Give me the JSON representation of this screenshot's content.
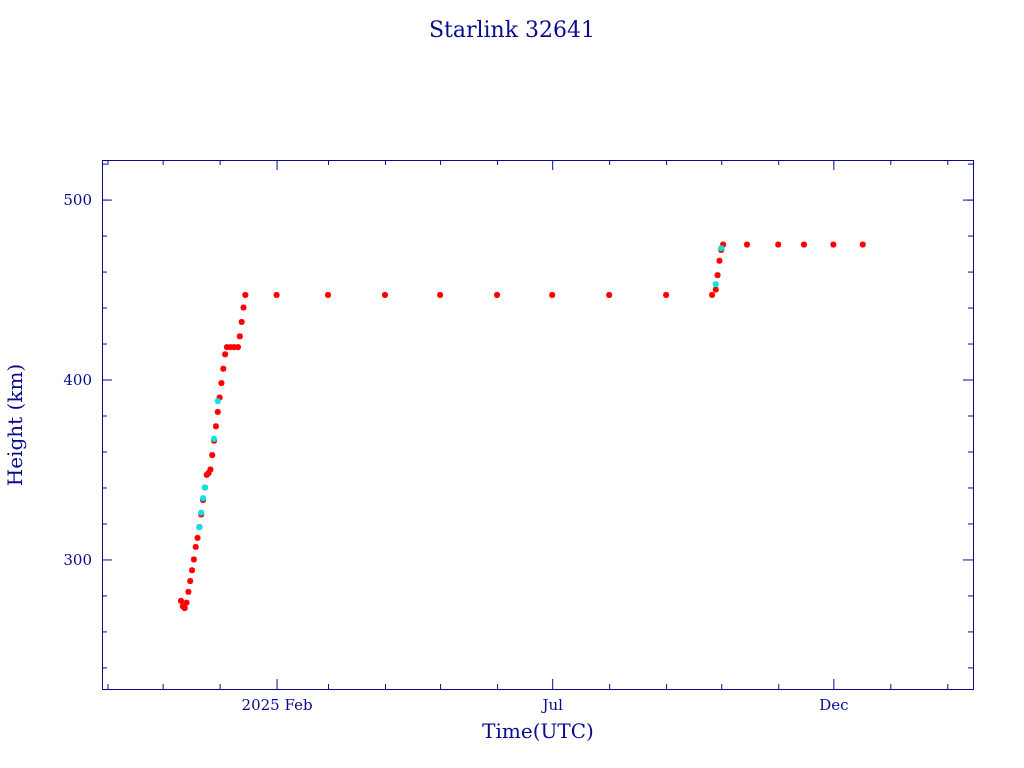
{
  "chart_data": {
    "type": "scatter",
    "title": "Starlink 32641",
    "xlabel": "Time(UTC)",
    "ylabel": "Height (km)",
    "x_unit": "date",
    "xlim": [
      "2024-10-29",
      "2026-02-15"
    ],
    "ylim": [
      228,
      522
    ],
    "x_major_ticks": [
      {
        "date": "2025-02-01",
        "label": "2025 Feb"
      },
      {
        "date": "2025-07-01",
        "label": "Jul"
      },
      {
        "date": "2025-12-01",
        "label": "Dec"
      }
    ],
    "x_minor_ticks": [
      "2024-11-01",
      "2024-12-01",
      "2025-01-01",
      "2025-03-01",
      "2025-04-01",
      "2025-05-01",
      "2025-06-01",
      "2025-08-01",
      "2025-09-01",
      "2025-10-01",
      "2025-11-01",
      "2026-01-01",
      "2026-02-01"
    ],
    "y_major_ticks": [
      300,
      400,
      500
    ],
    "y_minor_ticks": [
      240,
      260,
      280,
      320,
      340,
      360,
      380,
      420,
      440,
      460,
      480,
      500,
      520
    ],
    "grid": false,
    "series": [
      {
        "color": "#ff0000",
        "points": [
          [
            "2024-12-11",
            277
          ],
          [
            "2024-12-12",
            274
          ],
          [
            "2024-12-13",
            273
          ],
          [
            "2024-12-14",
            276
          ],
          [
            "2024-12-15",
            282
          ],
          [
            "2024-12-16",
            288
          ],
          [
            "2024-12-17",
            294
          ],
          [
            "2024-12-18",
            300
          ],
          [
            "2024-12-19",
            307
          ],
          [
            "2024-12-20",
            312
          ],
          [
            "2024-12-21",
            318
          ],
          [
            "2024-12-22",
            325
          ],
          [
            "2024-12-23",
            333
          ],
          [
            "2024-12-24",
            340
          ],
          [
            "2024-12-25",
            347
          ],
          [
            "2024-12-26",
            348
          ],
          [
            "2024-12-27",
            350
          ],
          [
            "2024-12-28",
            358
          ],
          [
            "2024-12-29",
            366
          ],
          [
            "2024-12-30",
            374
          ],
          [
            "2024-12-31",
            382
          ],
          [
            "2025-01-01",
            390
          ],
          [
            "2025-01-02",
            398
          ],
          [
            "2025-01-03",
            406
          ],
          [
            "2025-01-04",
            414
          ],
          [
            "2025-01-05",
            418
          ],
          [
            "2025-01-07",
            418
          ],
          [
            "2025-01-09",
            418
          ],
          [
            "2025-01-11",
            418
          ],
          [
            "2025-01-12",
            424
          ],
          [
            "2025-01-13",
            432
          ],
          [
            "2025-01-14",
            440
          ],
          [
            "2025-01-15",
            447
          ],
          [
            "2025-02-01",
            447
          ],
          [
            "2025-03-01",
            447
          ],
          [
            "2025-04-01",
            447
          ],
          [
            "2025-05-01",
            447
          ],
          [
            "2025-06-01",
            447
          ],
          [
            "2025-07-01",
            447
          ],
          [
            "2025-08-01",
            447
          ],
          [
            "2025-09-01",
            447
          ],
          [
            "2025-09-26",
            447
          ],
          [
            "2025-09-28",
            450
          ],
          [
            "2025-09-29",
            458
          ],
          [
            "2025-09-30",
            466
          ],
          [
            "2025-10-01",
            472
          ],
          [
            "2025-10-02",
            475
          ],
          [
            "2025-10-15",
            475
          ],
          [
            "2025-11-01",
            475
          ],
          [
            "2025-11-15",
            475
          ],
          [
            "2025-12-01",
            475
          ],
          [
            "2025-12-17",
            475
          ]
        ]
      },
      {
        "color": "#00e5e5",
        "points": [
          [
            "2024-12-21",
            318
          ],
          [
            "2024-12-22",
            326
          ],
          [
            "2024-12-23",
            334
          ],
          [
            "2024-12-24",
            340
          ],
          [
            "2024-12-29",
            367
          ],
          [
            "2024-12-31",
            388
          ],
          [
            "2025-09-28",
            453
          ],
          [
            "2025-10-01",
            473
          ]
        ]
      }
    ]
  }
}
